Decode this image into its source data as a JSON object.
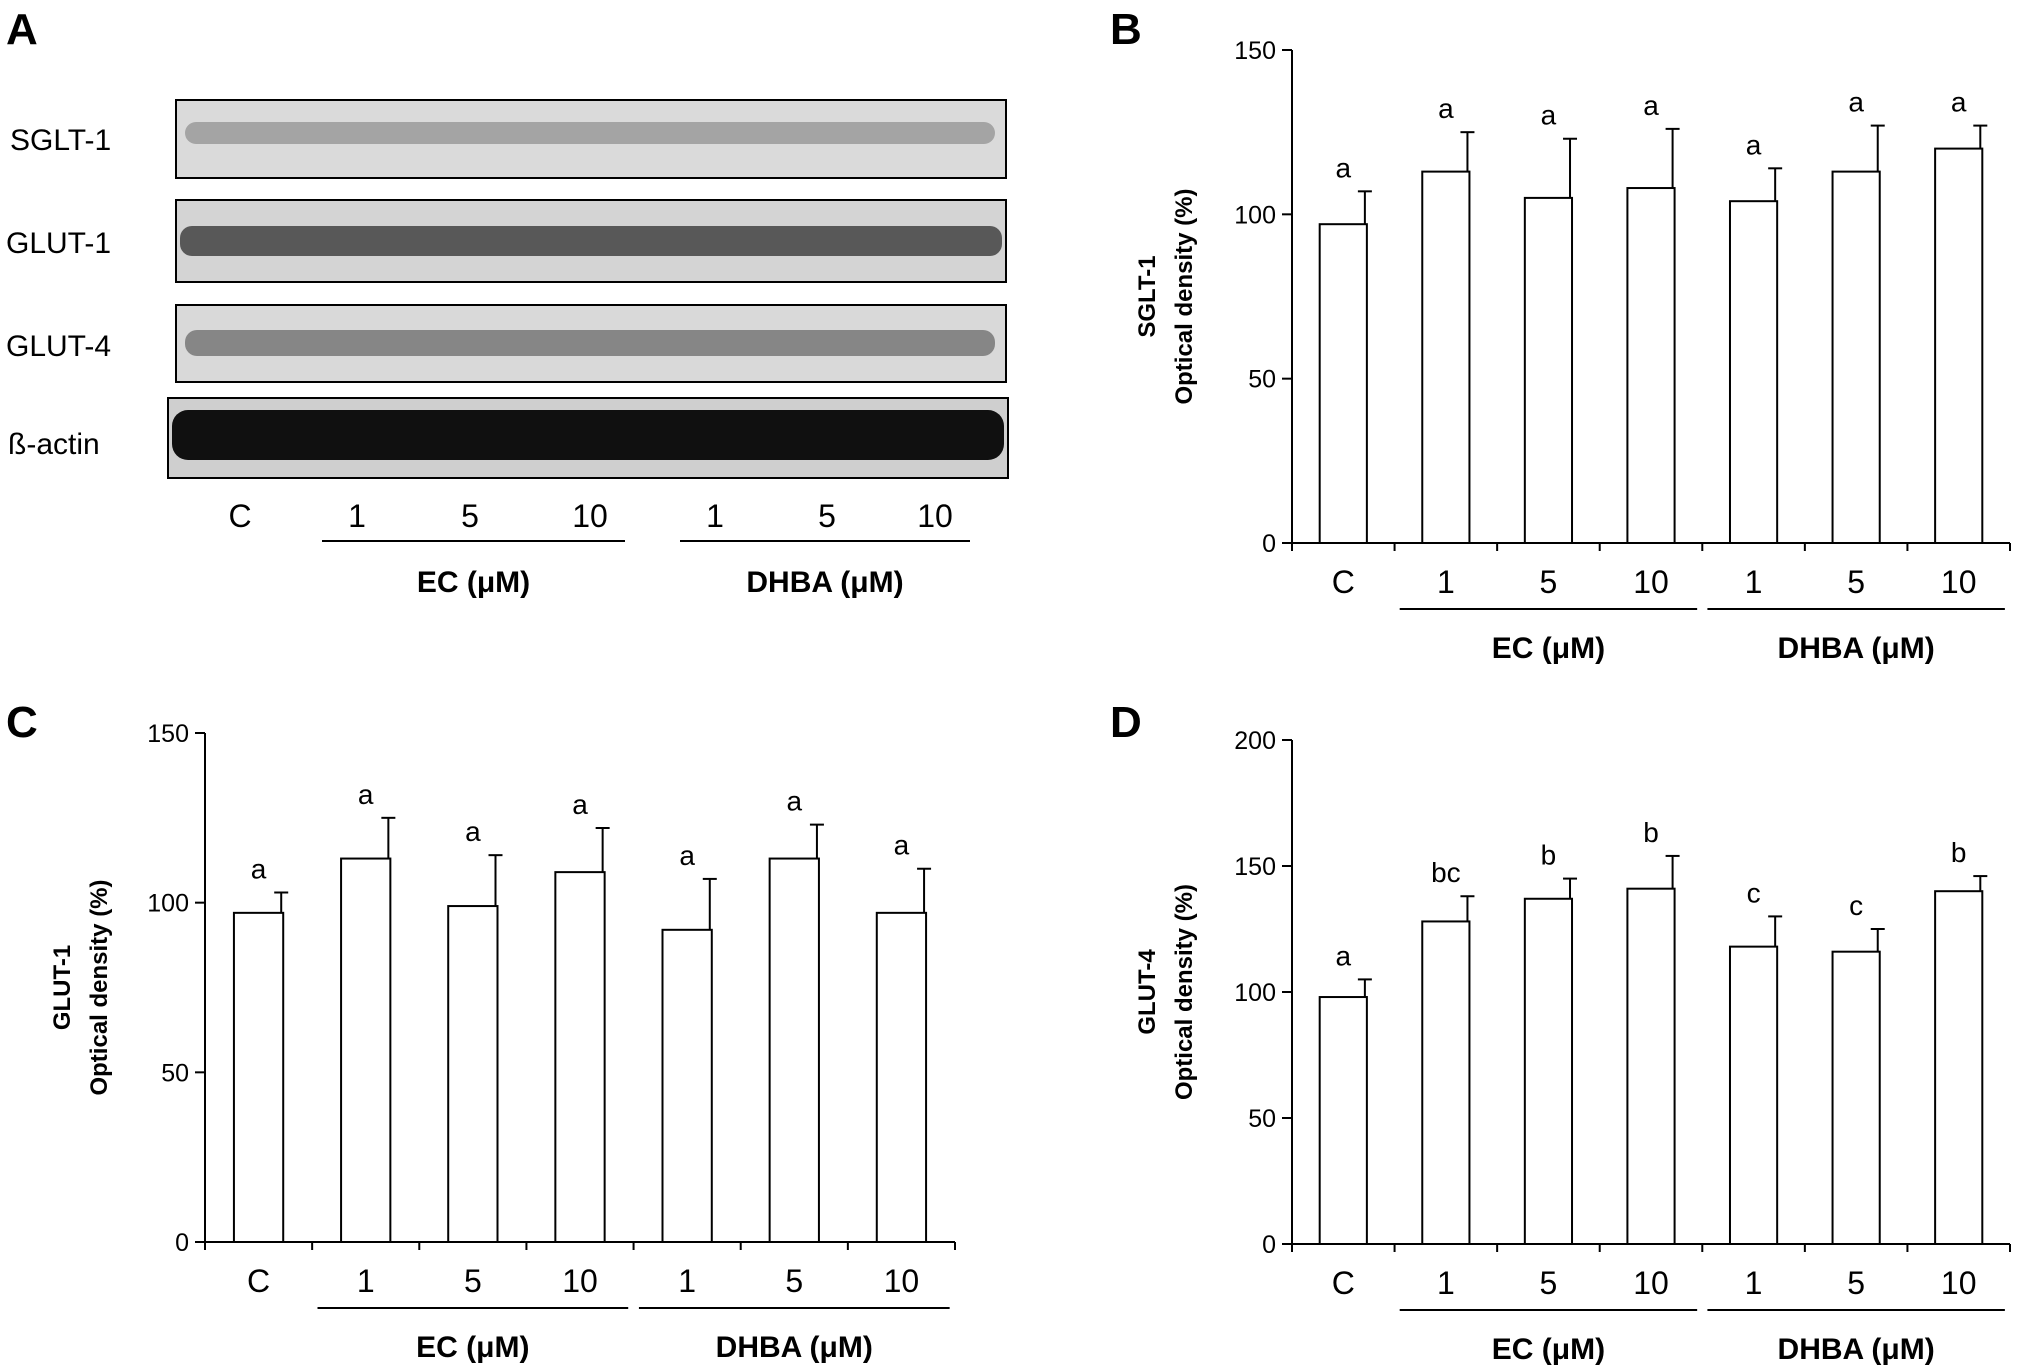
{
  "blot_panel": {
    "letter": "A",
    "bands": [
      {
        "label": "SGLT-1"
      },
      {
        "label": "GLUT-1"
      },
      {
        "label": "GLUT-4"
      },
      {
        "label": "ß-actin"
      }
    ],
    "lanes": [
      "C",
      "1",
      "5",
      "10",
      "1",
      "5",
      "10"
    ],
    "groups": [
      "EC (μM)",
      "DHBA (μM)"
    ]
  },
  "chart_data": [
    {
      "panel": "B",
      "type": "bar",
      "categories": [
        "C",
        "1",
        "5",
        "10",
        "1",
        "5",
        "10"
      ],
      "groups": [
        {
          "label": "EC (μM)",
          "members": [
            1,
            2,
            3
          ]
        },
        {
          "label": "DHBA (μM)",
          "members": [
            4,
            5,
            6
          ]
        }
      ],
      "ylabel_top": "SGLT-1",
      "ylabel_bottom": "Optical density (%)",
      "ylim": [
        0,
        150
      ],
      "yticks": [
        0,
        50,
        100,
        150
      ],
      "values": [
        97,
        113,
        105,
        108,
        104,
        113,
        120
      ],
      "errors": [
        10,
        12,
        18,
        18,
        10,
        14,
        7
      ],
      "sig": [
        "a",
        "a",
        "a",
        "a",
        "a",
        "a",
        "a"
      ]
    },
    {
      "panel": "C",
      "type": "bar",
      "categories": [
        "C",
        "1",
        "5",
        "10",
        "1",
        "5",
        "10"
      ],
      "groups": [
        {
          "label": "EC (μM)",
          "members": [
            1,
            2,
            3
          ]
        },
        {
          "label": "DHBA (μM)",
          "members": [
            4,
            5,
            6
          ]
        }
      ],
      "ylabel_top": "GLUT-1",
      "ylabel_bottom": "Optical density (%)",
      "ylim": [
        0,
        150
      ],
      "yticks": [
        0,
        50,
        100,
        150
      ],
      "values": [
        97,
        113,
        99,
        109,
        92,
        113,
        97
      ],
      "errors": [
        6,
        12,
        15,
        13,
        15,
        10,
        13
      ],
      "sig": [
        "a",
        "a",
        "a",
        "a",
        "a",
        "a",
        "a"
      ]
    },
    {
      "panel": "D",
      "type": "bar",
      "categories": [
        "C",
        "1",
        "5",
        "10",
        "1",
        "5",
        "10"
      ],
      "groups": [
        {
          "label": "EC (μM)",
          "members": [
            1,
            2,
            3
          ]
        },
        {
          "label": "DHBA (μM)",
          "members": [
            4,
            5,
            6
          ]
        }
      ],
      "ylabel_top": "GLUT-4",
      "ylabel_bottom": "Optical density (%)",
      "ylim": [
        0,
        200
      ],
      "yticks": [
        0,
        50,
        100,
        150,
        200
      ],
      "values": [
        98,
        128,
        137,
        141,
        118,
        116,
        140
      ],
      "errors": [
        7,
        10,
        8,
        13,
        12,
        9,
        6
      ],
      "sig": [
        "a",
        "bc",
        "b",
        "b",
        "c",
        "c",
        "b"
      ]
    }
  ]
}
